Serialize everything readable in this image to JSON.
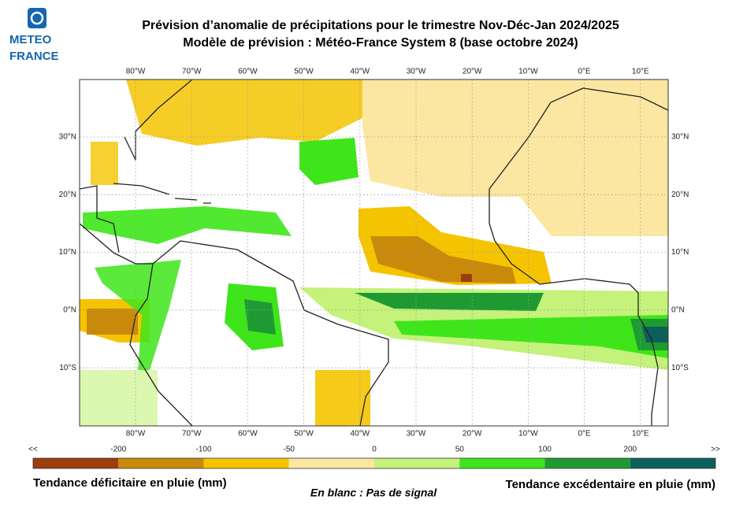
{
  "logo": {
    "line1": "METEO",
    "line2": "FRANCE"
  },
  "header": {
    "title": "Prévision d’anomalie de précipitations pour le trimestre Nov-Déc-Jan 2024/2025",
    "subtitle": "Modèle de prévision : Météo-France System 8 (base octobre 2024)"
  },
  "map": {
    "lon_labels": [
      "80°W",
      "70°W",
      "60°W",
      "50°W",
      "40°W",
      "30°W",
      "20°W",
      "10°W",
      "0°E",
      "10°E"
    ],
    "lat_labels": [
      "30°N",
      "20°N",
      "10°N",
      "0°N",
      "10°S"
    ]
  },
  "colorbar": {
    "labels": [
      "<<",
      "-200",
      "-100",
      "-50",
      "0",
      "50",
      "100",
      "200",
      ">>"
    ],
    "colors": [
      "#9c3d0c",
      "#c98a0c",
      "#f5c400",
      "#fbe7a2",
      "#c4f27a",
      "#3ee51a",
      "#1f9a33",
      "#0d5f5c"
    ]
  },
  "legend": {
    "left": "Tendance déficitaire en pluie (mm)",
    "center": "En blanc : Pas de signal",
    "right": "Tendance excédentaire en pluie (mm)"
  }
}
